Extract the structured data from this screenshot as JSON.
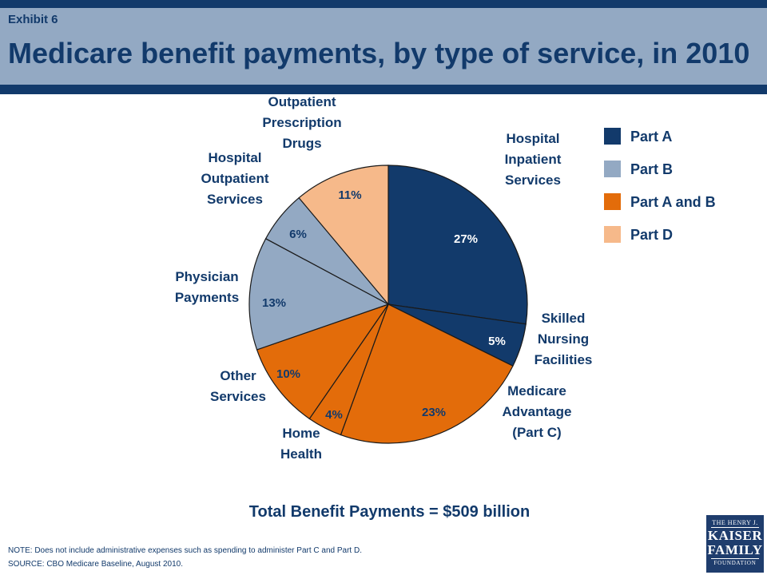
{
  "header": {
    "exhibit": "Exhibit 6",
    "title": "Medicare benefit payments, by type of service, in 2010"
  },
  "colors": {
    "part_a": "#123a6b",
    "part_b": "#93a9c3",
    "part_ab": "#e36c0a",
    "part_d": "#f6b98a",
    "header_band": "#93a9c3",
    "header_bar": "#123a6b",
    "text": "#123a6b"
  },
  "legend": [
    {
      "label": "Part A",
      "color": "#123a6b"
    },
    {
      "label": "Part B",
      "color": "#93a9c3"
    },
    {
      "label": "Part A and B",
      "color": "#e36c0a"
    },
    {
      "label": "Part D",
      "color": "#f6b98a"
    }
  ],
  "chart_data": {
    "type": "pie",
    "title": "Medicare benefit payments, by type of service, in 2010",
    "start_angle": "12 o'clock",
    "direction": "clockwise",
    "slices": [
      {
        "name": "Hospital Inpatient Services",
        "lines": [
          "Hospital",
          "Inpatient",
          "Services"
        ],
        "value": 27,
        "label": "27%",
        "part": "Part A",
        "color": "#123a6b"
      },
      {
        "name": "Skilled Nursing Facilities",
        "lines": [
          "Skilled",
          "Nursing",
          "Facilities"
        ],
        "value": 5,
        "label": "5%",
        "part": "Part A",
        "color": "#123a6b"
      },
      {
        "name": "Medicare Advantage (Part C)",
        "lines": [
          "Medicare",
          "Advantage",
          "(Part C)"
        ],
        "value": 23,
        "label": "23%",
        "part": "Part A and B",
        "color": "#e36c0a"
      },
      {
        "name": "Home Health",
        "lines": [
          "Home",
          "Health"
        ],
        "value": 4,
        "label": "4%",
        "part": "Part A and B",
        "color": "#e36c0a"
      },
      {
        "name": "Other Services",
        "lines": [
          "Other",
          "Services"
        ],
        "value": 10,
        "label": "10%",
        "part": "Part A and B",
        "color": "#e36c0a"
      },
      {
        "name": "Physician Payments",
        "lines": [
          "Physician",
          "Payments"
        ],
        "value": 13,
        "label": "13%",
        "part": "Part B",
        "color": "#93a9c3"
      },
      {
        "name": "Hospital Outpatient Services",
        "lines": [
          "Hospital",
          "Outpatient",
          "Services"
        ],
        "value": 6,
        "label": "6%",
        "part": "Part B",
        "color": "#93a9c3"
      },
      {
        "name": "Outpatient Prescription Drugs",
        "lines": [
          "Outpatient",
          "Prescription",
          "Drugs"
        ],
        "value": 11,
        "label": "11%",
        "part": "Part D",
        "color": "#f6b98a"
      }
    ]
  },
  "total": "Total Benefit Payments = $509 billion",
  "note": "NOTE: Does not include administrative  expenses such as spending to administer Part C and Part D.",
  "source": "SOURCE: CBO Medicare Baseline, August 2010.",
  "logo": {
    "line1": "THE HENRY J.",
    "line2": "KAISER",
    "line3": "FAMILY",
    "line4": "FOUNDATION"
  }
}
